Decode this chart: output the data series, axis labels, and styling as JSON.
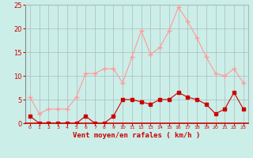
{
  "hours": [
    0,
    1,
    2,
    3,
    4,
    5,
    6,
    7,
    8,
    9,
    10,
    11,
    12,
    13,
    14,
    15,
    16,
    17,
    18,
    19,
    20,
    21,
    22,
    23
  ],
  "wind_avg": [
    1.5,
    0.0,
    0.0,
    0.0,
    0.0,
    0.0,
    1.5,
    0.0,
    0.0,
    1.5,
    5.0,
    5.0,
    4.5,
    4.0,
    5.0,
    5.0,
    6.5,
    5.5,
    5.0,
    4.0,
    2.0,
    3.0,
    6.5,
    3.0
  ],
  "wind_gust": [
    5.5,
    2.0,
    3.0,
    3.0,
    3.0,
    5.5,
    10.5,
    10.5,
    11.5,
    11.5,
    8.5,
    14.0,
    19.5,
    14.5,
    16.0,
    19.5,
    24.5,
    21.5,
    18.0,
    14.0,
    10.5,
    10.0,
    11.5,
    8.5
  ],
  "avg_color": "#cc0000",
  "gust_color": "#ff9999",
  "bg_color": "#cceee8",
  "grid_color": "#aabbbb",
  "xlabel": "Vent moyen/en rafales ( km/h )",
  "xlabel_color": "#cc0000",
  "tick_color": "#cc0000",
  "ylim": [
    0,
    25
  ],
  "yticks": [
    0,
    5,
    10,
    15,
    20,
    25
  ]
}
